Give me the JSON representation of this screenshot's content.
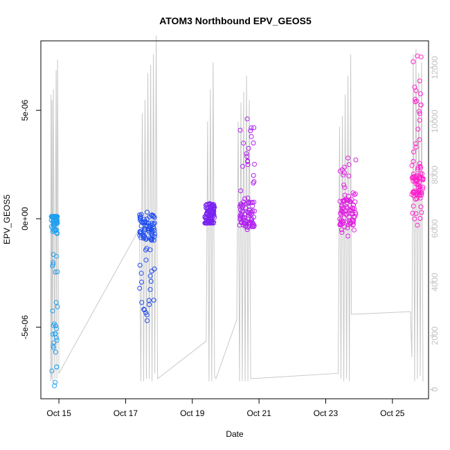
{
  "chart_data": {
    "type": "scatter",
    "title": "ATOM3 Northbound EPV_GEOS5",
    "xlabel": "Date",
    "ylabel": "EPV_GEOS5",
    "x_ticks": [
      "Oct 15",
      "Oct 17",
      "Oct 19",
      "Oct 21",
      "Oct 23",
      "Oct 25"
    ],
    "xlim": [
      "2016-10-14T11:00",
      "2016-10-26T02:00"
    ],
    "ylim": [
      -8.3e-06,
      8.2e-06
    ],
    "y_ticks": [
      {
        "value": -5e-06,
        "label": "-5e-06"
      },
      {
        "value": 0,
        "label": "0e+00"
      },
      {
        "value": 5e-06,
        "label": "5e-06"
      }
    ],
    "y2lim": [
      -350,
      13000
    ],
    "y2_ticks": [
      0,
      2000,
      4000,
      6000,
      8000,
      10000,
      12000
    ],
    "grid": false,
    "legend": "none",
    "colors": {
      "line": "#c8c8c8",
      "epv_gradient": [
        "#1fa0f0",
        "#1e4cf0",
        "#7a22f0",
        "#b020f0",
        "#e020e0",
        "#ff22cc"
      ]
    },
    "series": [
      {
        "type": "scatter",
        "flights": [
          {
            "date": "Oct 15",
            "t_start": "2016-10-14T18:30",
            "t_end": "2016-10-14T23:00",
            "epv_min": -7.7e-06,
            "epv_max": 1e-07,
            "epv_typical": -1e-07,
            "color": "#1fa0f0"
          },
          {
            "date": "Oct 17",
            "t_start": "2016-10-17T10:00",
            "t_end": "2016-10-17T21:00",
            "epv_min": -4.7e-06,
            "epv_max": 3e-07,
            "epv_typical": -4e-07,
            "color": "#1e4cf0"
          },
          {
            "date": "Oct 19",
            "t_start": "2016-10-19T09:00",
            "t_end": "2016-10-19T16:00",
            "epv_min": -2e-07,
            "epv_max": 7e-07,
            "epv_typical": 1e-07,
            "color": "#7a22f0"
          },
          {
            "date": "Oct 20–21",
            "t_start": "2016-10-20T10:00",
            "t_end": "2016-10-20T21:00",
            "epv_min": -5e-07,
            "epv_max": 4.6e-06,
            "epv_typical": 2e-07,
            "color": "#b020f0"
          },
          {
            "date": "Oct 23",
            "t_start": "2016-10-23T10:00",
            "t_end": "2016-10-23T22:00",
            "epv_min": -8e-07,
            "epv_max": 2.8e-06,
            "epv_typical": 3e-07,
            "color": "#e020e0"
          },
          {
            "date": "Oct 25",
            "t_start": "2016-10-25T14:00",
            "t_end": "2016-10-25T22:00",
            "epv_min": -3e-07,
            "epv_max": 7.5e-06,
            "epv_typical": 1.5e-06,
            "color": "#ff22cc"
          }
        ]
      },
      {
        "type": "line",
        "axis": "right",
        "points": [
          [
            "2016-10-14T18:00",
            300
          ],
          [
            "2016-10-14T18:20",
            11000
          ],
          [
            "2016-10-14T18:40",
            400
          ],
          [
            "2016-10-14T19:00",
            10800
          ],
          [
            "2016-10-14T19:30",
            300
          ],
          [
            "2016-10-14T20:00",
            11200
          ],
          [
            "2016-10-14T21:00",
            400
          ],
          [
            "2016-10-14T22:00",
            11900
          ],
          [
            "2016-10-14T22:30",
            400
          ],
          [
            "2016-10-14T23:00",
            12300
          ],
          [
            "2016-10-15T00:00",
            600
          ],
          [
            "2016-10-17T10:00",
            6000
          ],
          [
            "2016-10-17T11:00",
            300
          ],
          [
            "2016-10-17T12:00",
            10300
          ],
          [
            "2016-10-17T13:00",
            300
          ],
          [
            "2016-10-17T14:00",
            10800
          ],
          [
            "2016-10-17T15:00",
            400
          ],
          [
            "2016-10-17T16:00",
            11800
          ],
          [
            "2016-10-17T17:00",
            400
          ],
          [
            "2016-10-17T18:00",
            12100
          ],
          [
            "2016-10-17T19:00",
            300
          ],
          [
            "2016-10-17T20:00",
            12500
          ],
          [
            "2016-10-17T21:00",
            600
          ],
          [
            "2016-10-17T22:00",
            13200
          ],
          [
            "2016-10-17T23:00",
            400
          ],
          [
            "2016-10-19T10:00",
            1800
          ],
          [
            "2016-10-19T11:00",
            10000
          ],
          [
            "2016-10-19T12:00",
            300
          ],
          [
            "2016-10-19T13:00",
            11200
          ],
          [
            "2016-10-19T14:00",
            300
          ],
          [
            "2016-10-19T15:00",
            12200
          ],
          [
            "2016-10-19T16:00",
            500
          ],
          [
            "2016-10-19T17:00",
            400
          ],
          [
            "2016-10-20T08:00",
            2600
          ],
          [
            "2016-10-20T09:00",
            10000
          ],
          [
            "2016-10-20T10:00",
            300
          ],
          [
            "2016-10-20T11:00",
            10700
          ],
          [
            "2016-10-20T12:00",
            300
          ],
          [
            "2016-10-20T13:00",
            11100
          ],
          [
            "2016-10-20T14:00",
            300
          ],
          [
            "2016-10-20T15:00",
            11700
          ],
          [
            "2016-10-20T16:00",
            300
          ],
          [
            "2016-10-20T17:00",
            10800
          ],
          [
            "2016-10-20T18:00",
            400
          ],
          [
            "2016-10-23T09:00",
            600
          ],
          [
            "2016-10-23T10:00",
            9800
          ],
          [
            "2016-10-23T11:00",
            400
          ],
          [
            "2016-10-23T12:00",
            10200
          ],
          [
            "2016-10-23T13:00",
            300
          ],
          [
            "2016-10-23T14:00",
            11000
          ],
          [
            "2016-10-23T15:00",
            400
          ],
          [
            "2016-10-23T16:00",
            11700
          ],
          [
            "2016-10-23T17:00",
            300
          ],
          [
            "2016-10-23T18:00",
            12500
          ],
          [
            "2016-10-23T18:30",
            2800
          ],
          [
            "2016-10-25T13:00",
            2900
          ],
          [
            "2016-10-25T14:00",
            1200
          ],
          [
            "2016-10-25T15:00",
            12500
          ],
          [
            "2016-10-25T16:00",
            300
          ],
          [
            "2016-10-25T17:00",
            12700
          ],
          [
            "2016-10-25T18:00",
            400
          ],
          [
            "2016-10-25T19:00",
            11800
          ],
          [
            "2016-10-25T20:00",
            500
          ],
          [
            "2016-10-25T21:00",
            12200
          ],
          [
            "2016-10-25T22:00",
            300
          ]
        ]
      }
    ]
  }
}
